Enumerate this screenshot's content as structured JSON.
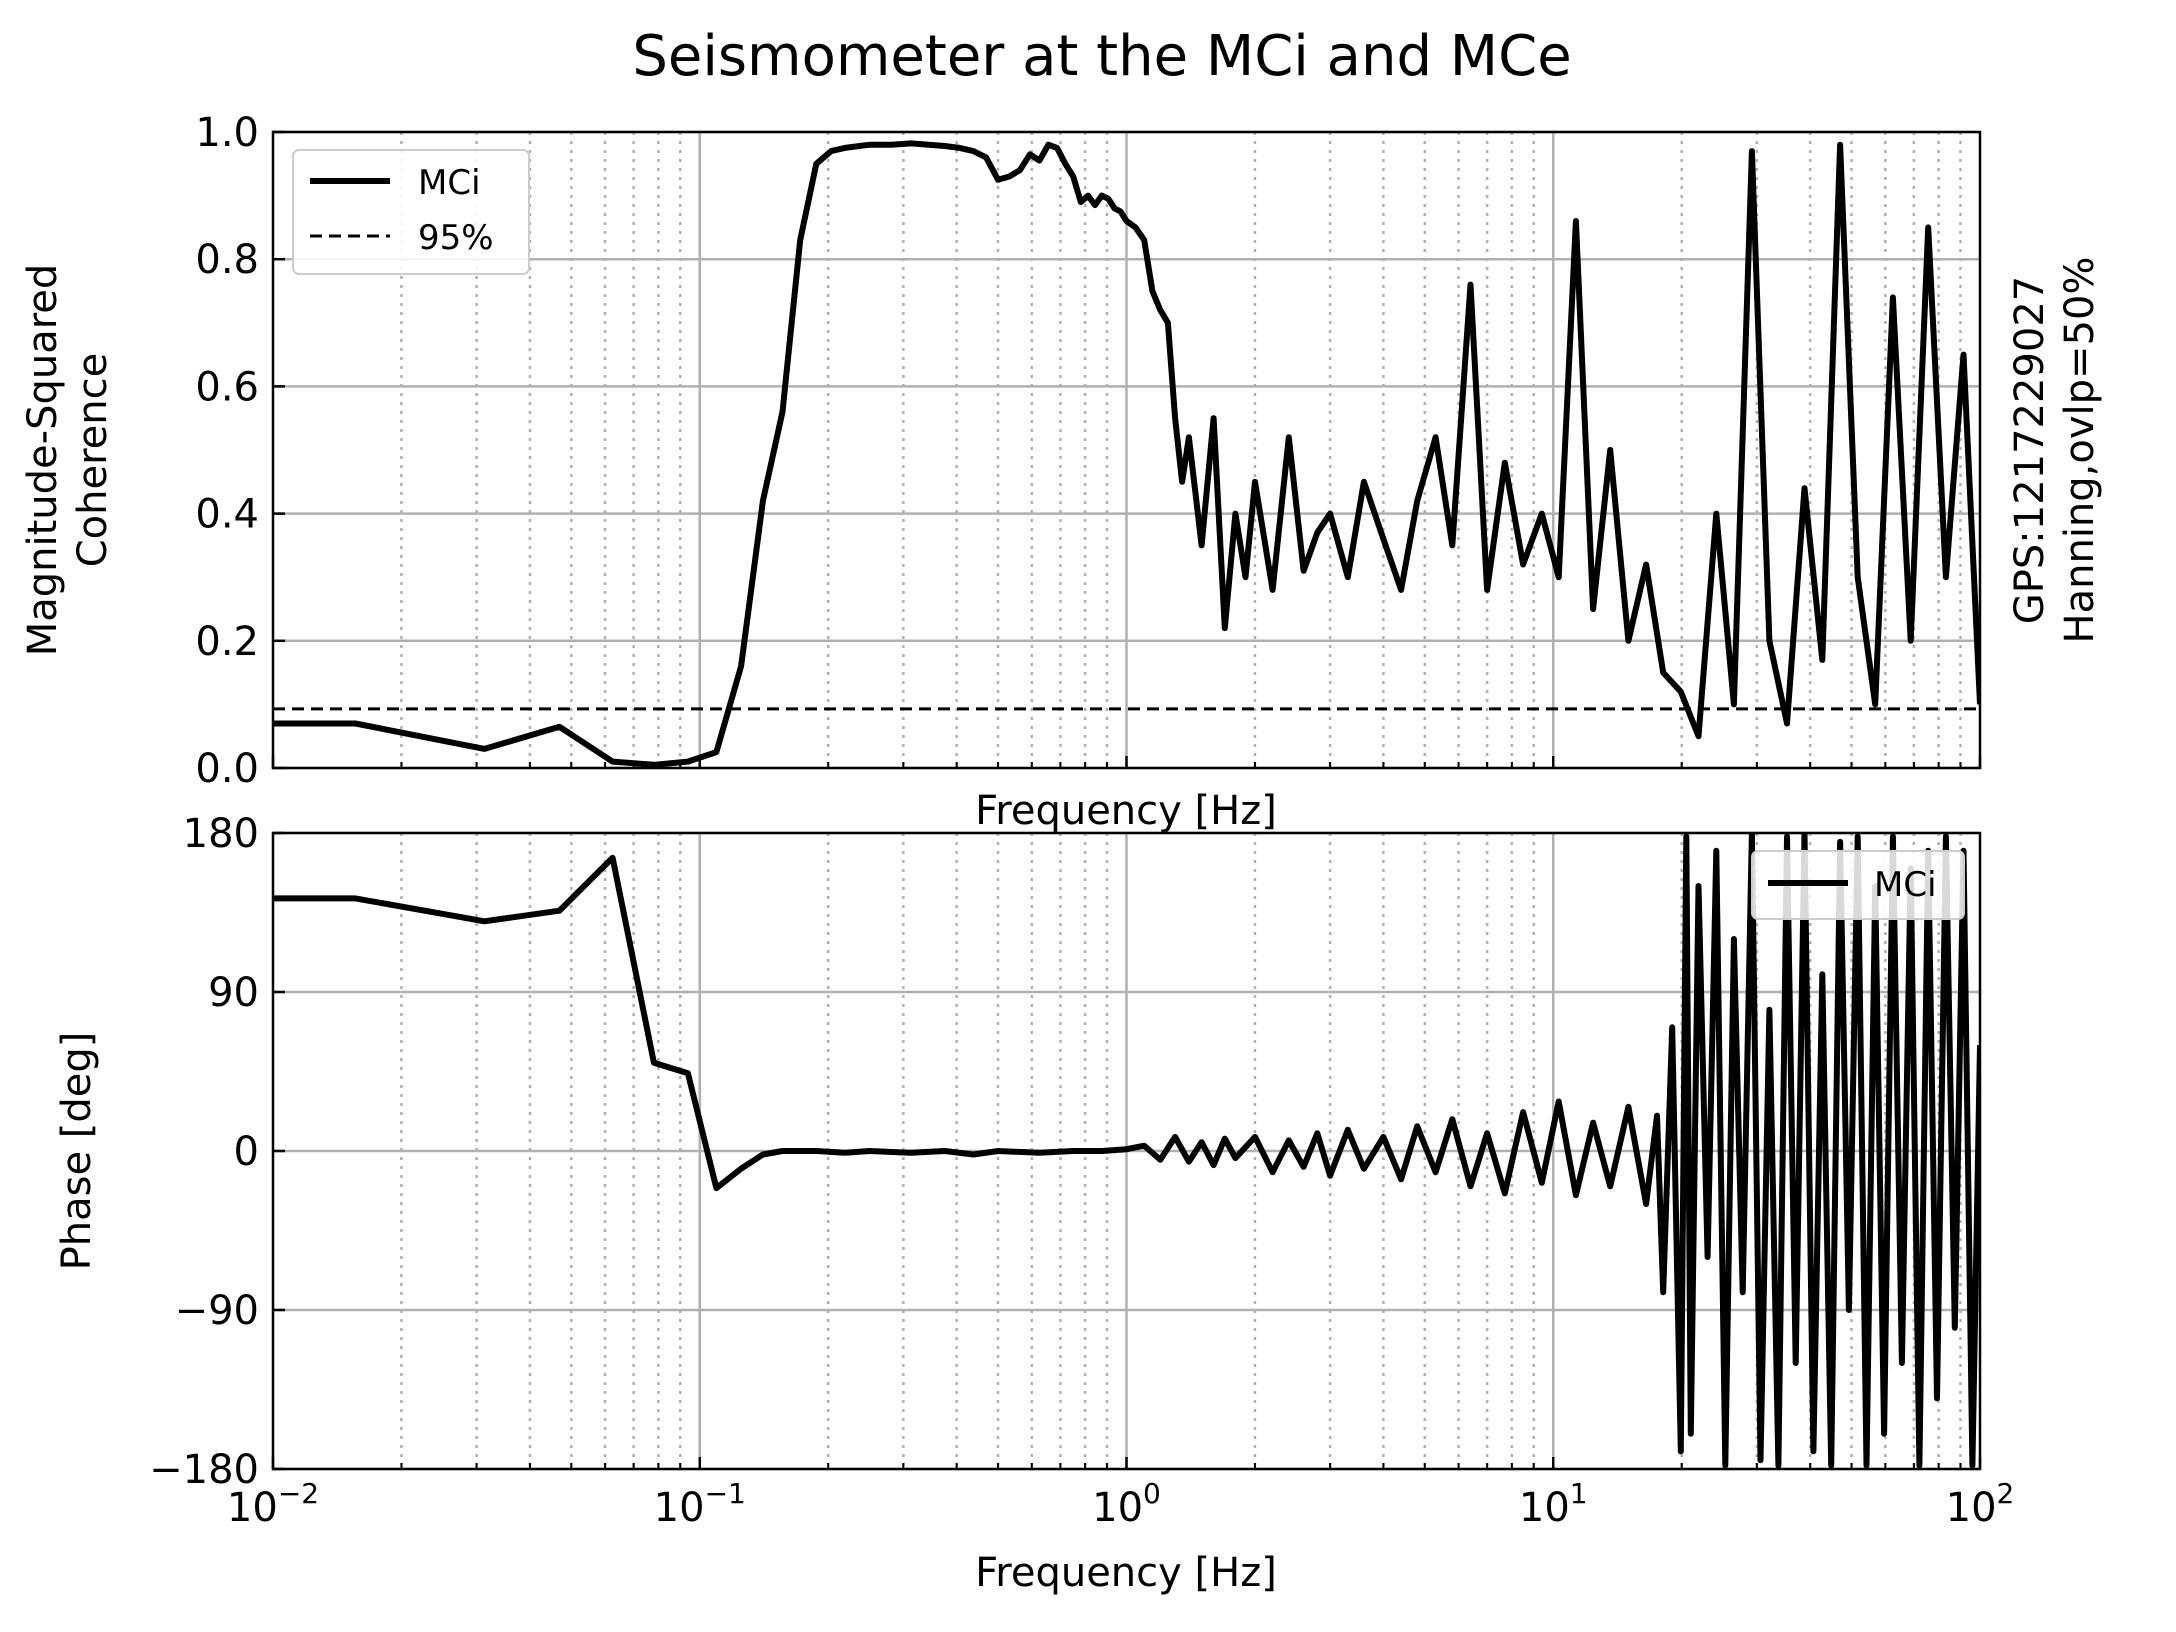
{
  "figure": {
    "title": "Seismometer at the MCi and MCe",
    "side_note_line1": "GPS:1217229027",
    "side_note_line2": "Hanning,ovlp=50%"
  },
  "chart_data": [
    {
      "type": "line",
      "panel": "coherence",
      "xscale": "log",
      "xlim": [
        0.01,
        100
      ],
      "ylim": [
        0,
        1
      ],
      "xlabel": "Frequency [Hz]",
      "ylabel_line1": "Magnitude-Squared",
      "ylabel_line2": "Coherence",
      "yticks": [
        0.0,
        0.2,
        0.4,
        0.6,
        0.8,
        1.0
      ],
      "ytick_labels": [
        "0.0",
        "0.2",
        "0.4",
        "0.6",
        "0.8",
        "1.0"
      ],
      "grid": true,
      "legend": {
        "placement": "top-left",
        "entries": [
          "MCi",
          "95%"
        ]
      },
      "series": [
        {
          "name": "MCi",
          "style": "solid",
          "color": "#000000",
          "x": [
            0.01,
            0.0156,
            0.0313,
            0.0469,
            0.0625,
            0.0781,
            0.0938,
            0.1094,
            0.125,
            0.1406,
            0.1563,
            0.1719,
            0.1875,
            0.2031,
            0.2188,
            0.25,
            0.2813,
            0.3125,
            0.3438,
            0.375,
            0.4063,
            0.4375,
            0.4688,
            0.5,
            0.5313,
            0.5625,
            0.5938,
            0.625,
            0.6563,
            0.6875,
            0.7188,
            0.75,
            0.7813,
            0.8125,
            0.8438,
            0.875,
            0.9063,
            0.9375,
            0.9688,
            1.0,
            1.05,
            1.1,
            1.15,
            1.2,
            1.25,
            1.3,
            1.35,
            1.4,
            1.5,
            1.6,
            1.7,
            1.8,
            1.9,
            2.0,
            2.2,
            2.4,
            2.6,
            2.8,
            3.0,
            3.3,
            3.6,
            4.0,
            4.4,
            4.8,
            5.3,
            5.8,
            6.4,
            7.0,
            7.7,
            8.5,
            9.4,
            10.3,
            11.3,
            12.4,
            13.6,
            15.0,
            16.5,
            18.1,
            19.9,
            21.9,
            24.1,
            26.5,
            29.2,
            32.1,
            35.3,
            38.8,
            42.7,
            47.0,
            51.7,
            56.8,
            62.5,
            68.8,
            75.6,
            83.2,
            91.5,
            100.0
          ],
          "y": [
            0.07,
            0.07,
            0.03,
            0.065,
            0.01,
            0.005,
            0.01,
            0.025,
            0.16,
            0.42,
            0.56,
            0.83,
            0.95,
            0.97,
            0.975,
            0.98,
            0.98,
            0.982,
            0.98,
            0.978,
            0.975,
            0.97,
            0.96,
            0.925,
            0.93,
            0.94,
            0.965,
            0.955,
            0.98,
            0.975,
            0.95,
            0.93,
            0.89,
            0.9,
            0.885,
            0.9,
            0.895,
            0.88,
            0.875,
            0.86,
            0.85,
            0.83,
            0.75,
            0.72,
            0.7,
            0.55,
            0.45,
            0.52,
            0.35,
            0.55,
            0.22,
            0.4,
            0.3,
            0.45,
            0.28,
            0.52,
            0.31,
            0.37,
            0.4,
            0.3,
            0.45,
            0.36,
            0.28,
            0.42,
            0.52,
            0.35,
            0.76,
            0.28,
            0.48,
            0.32,
            0.4,
            0.3,
            0.86,
            0.25,
            0.5,
            0.2,
            0.32,
            0.15,
            0.12,
            0.05,
            0.4,
            0.1,
            0.97,
            0.2,
            0.07,
            0.44,
            0.17,
            0.98,
            0.3,
            0.1,
            0.74,
            0.2,
            0.85,
            0.3,
            0.65,
            0.1
          ]
        },
        {
          "name": "95%",
          "style": "dashed",
          "color": "#000000",
          "x": [
            0.01,
            100
          ],
          "y": [
            0.093,
            0.093
          ]
        }
      ]
    },
    {
      "type": "line",
      "panel": "phase",
      "xscale": "log",
      "xlim": [
        0.01,
        100
      ],
      "ylim": [
        -180,
        180
      ],
      "xlabel": "Frequency [Hz]",
      "ylabel": "Phase [deg]",
      "yticks": [
        -180,
        -90,
        0,
        90,
        180
      ],
      "ytick_labels": [
        "−180",
        "−90",
        "0",
        "90",
        "180"
      ],
      "xticks": [
        0.01,
        0.1,
        1,
        10,
        100
      ],
      "xtick_base": [
        "10",
        "10",
        "10",
        "10",
        "10"
      ],
      "xtick_exp": [
        "−2",
        "−1",
        "0",
        "1",
        "2"
      ],
      "grid": true,
      "legend": {
        "placement": "top-right",
        "entries": [
          "MCi"
        ]
      },
      "series": [
        {
          "name": "MCi",
          "style": "solid",
          "color": "#000000",
          "x": [
            0.01,
            0.0156,
            0.0313,
            0.0469,
            0.0625,
            0.0781,
            0.0938,
            0.1094,
            0.125,
            0.1406,
            0.1563,
            0.1719,
            0.1875,
            0.2188,
            0.25,
            0.3125,
            0.375,
            0.4375,
            0.5,
            0.625,
            0.75,
            0.875,
            1.0,
            1.1,
            1.2,
            1.3,
            1.4,
            1.5,
            1.6,
            1.7,
            1.8,
            2.0,
            2.2,
            2.4,
            2.6,
            2.8,
            3.0,
            3.3,
            3.6,
            4.0,
            4.4,
            4.8,
            5.3,
            5.8,
            6.4,
            7.0,
            7.7,
            8.5,
            9.4,
            10.3,
            11.3,
            12.4,
            13.6,
            15.0,
            16.5,
            17.5,
            18.1,
            19.0,
            19.9,
            20.5,
            21.0,
            21.9,
            23.0,
            24.1,
            25.3,
            26.5,
            27.8,
            29.2,
            30.6,
            32.1,
            33.7,
            35.3,
            37.0,
            38.8,
            40.7,
            42.7,
            44.8,
            47.0,
            49.3,
            51.7,
            54.2,
            56.8,
            59.6,
            62.5,
            65.6,
            68.8,
            72.1,
            75.6,
            79.3,
            83.2,
            87.3,
            91.5,
            96.0,
            100.0
          ],
          "y": [
            143,
            143,
            130,
            136,
            166,
            50,
            44,
            -21,
            -10,
            -2,
            0,
            0,
            0,
            -1,
            0,
            -1,
            0,
            -2,
            0,
            -1,
            0,
            0,
            1,
            3,
            -5,
            8,
            -6,
            5,
            -8,
            7,
            -4,
            8,
            -12,
            6,
            -9,
            10,
            -14,
            12,
            -10,
            8,
            -16,
            14,
            -12,
            18,
            -20,
            10,
            -24,
            22,
            -18,
            28,
            -25,
            16,
            -20,
            25,
            -30,
            20,
            -80,
            70,
            -170,
            178,
            -160,
            150,
            -60,
            170,
            -178,
            120,
            -80,
            180,
            -175,
            80,
            -178,
            178,
            -120,
            180,
            -170,
            100,
            -178,
            175,
            -90,
            178,
            -178,
            150,
            -160,
            178,
            -120,
            160,
            -178,
            170,
            -140,
            178,
            -100,
            170,
            -178,
            60
          ]
        }
      ]
    }
  ]
}
